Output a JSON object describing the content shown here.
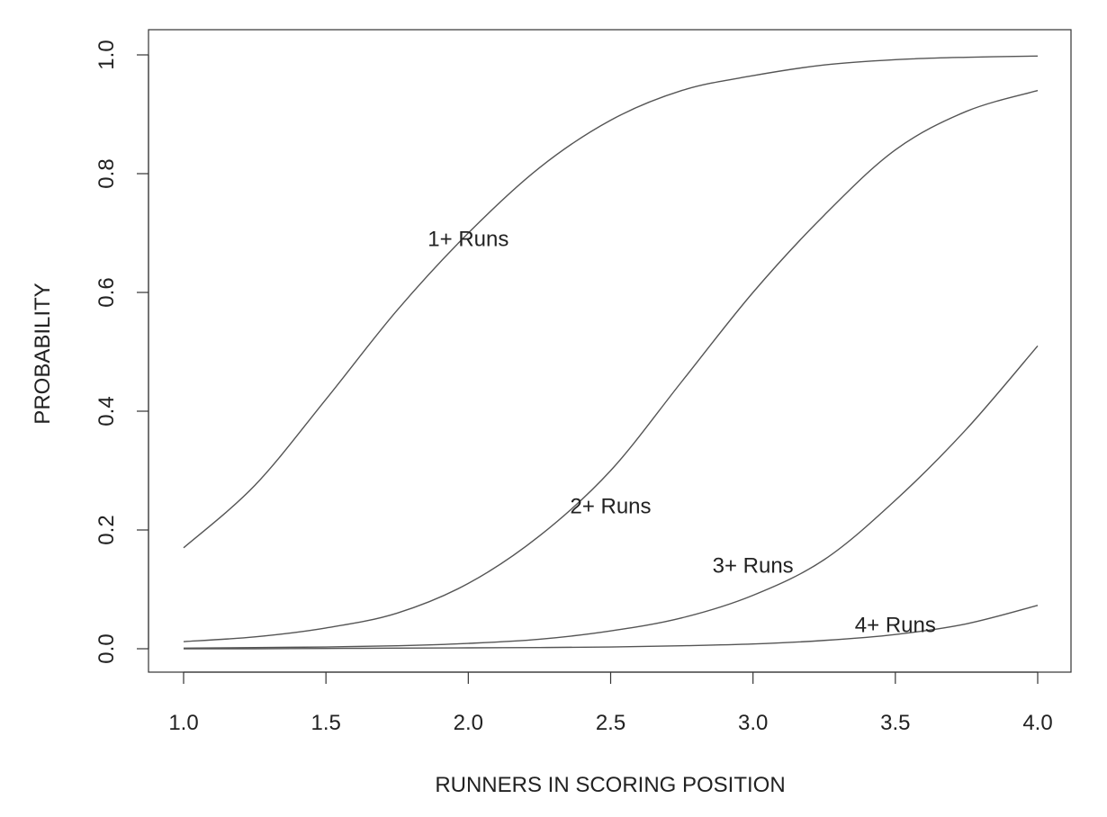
{
  "chart_data": {
    "type": "line",
    "title": "",
    "xlabel": "RUNNERS IN SCORING POSITION",
    "ylabel": "PROBABILITY",
    "xlim": [
      1.0,
      4.0
    ],
    "ylim": [
      0.0,
      1.0
    ],
    "x_ticks": [
      "1.0",
      "1.5",
      "2.0",
      "2.5",
      "3.0",
      "3.5",
      "4.0"
    ],
    "y_ticks": [
      "0.0",
      "0.2",
      "0.4",
      "0.6",
      "0.8",
      "1.0"
    ],
    "grid": false,
    "legend": "none",
    "series": [
      {
        "name": "1+ Runs",
        "x": [
          1.0,
          1.25,
          1.5,
          1.75,
          2.0,
          2.25,
          2.5,
          2.75,
          3.0,
          3.25,
          3.5,
          3.75,
          4.0
        ],
        "y": [
          0.17,
          0.275,
          0.42,
          0.57,
          0.7,
          0.81,
          0.89,
          0.94,
          0.965,
          0.983,
          0.992,
          0.996,
          0.998
        ]
      },
      {
        "name": "2+ Runs",
        "x": [
          1.0,
          1.25,
          1.5,
          1.75,
          2.0,
          2.25,
          2.5,
          2.75,
          3.0,
          3.25,
          3.5,
          3.75,
          4.0
        ],
        "y": [
          0.012,
          0.02,
          0.035,
          0.06,
          0.11,
          0.19,
          0.3,
          0.45,
          0.6,
          0.73,
          0.84,
          0.905,
          0.94
        ]
      },
      {
        "name": "3+ Runs",
        "x": [
          1.0,
          1.25,
          1.5,
          1.75,
          2.0,
          2.25,
          2.5,
          2.75,
          3.0,
          3.25,
          3.5,
          3.75,
          4.0
        ],
        "y": [
          0.001,
          0.002,
          0.003,
          0.005,
          0.009,
          0.016,
          0.03,
          0.052,
          0.09,
          0.15,
          0.25,
          0.37,
          0.51
        ]
      },
      {
        "name": "4+ Runs",
        "x": [
          1.0,
          1.25,
          1.5,
          1.75,
          2.0,
          2.25,
          2.5,
          2.75,
          3.0,
          3.25,
          3.5,
          3.75,
          4.0
        ],
        "y": [
          0.0,
          0.0,
          0.0005,
          0.001,
          0.0015,
          0.002,
          0.003,
          0.005,
          0.008,
          0.014,
          0.024,
          0.042,
          0.073
        ]
      }
    ],
    "annotations": [
      {
        "text": "1+ Runs",
        "x": 2.0,
        "y": 0.69
      },
      {
        "text": "2+ Runs",
        "x": 2.5,
        "y": 0.24
      },
      {
        "text": "3+ Runs",
        "x": 3.0,
        "y": 0.14
      },
      {
        "text": "4+ Runs",
        "x": 3.5,
        "y": 0.04
      }
    ],
    "colors": {
      "line": "#555555",
      "axis": "#333333"
    }
  }
}
